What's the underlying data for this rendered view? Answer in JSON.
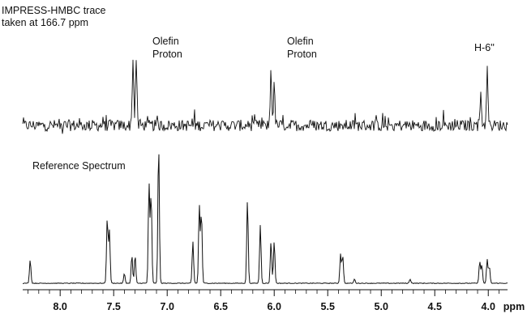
{
  "chart_data": [
    {
      "type": "line",
      "title": "IMPRESS-HMBC trace taken at 166.7 ppm",
      "title_lines": [
        "IMPRESS-HMBC trace",
        "taken  at 166.7 ppm"
      ],
      "x_unit": "ppm",
      "xlim": [
        8.35,
        3.82
      ],
      "x_reversed": true,
      "noise_baseline": true,
      "annotations": [
        {
          "text_lines": [
            "Olefin",
            "Proton"
          ],
          "x": 7.3
        },
        {
          "text_lines": [
            "Olefin",
            "Proton"
          ],
          "x": 6.02
        },
        {
          "text_lines": [
            "H-6''"
          ],
          "x": 4.02
        }
      ],
      "peaks": [
        {
          "x": 7.32,
          "height": 1.0
        },
        {
          "x": 7.29,
          "height": 1.0
        },
        {
          "x": 6.03,
          "height": 0.85
        },
        {
          "x": 6.0,
          "height": 0.6
        },
        {
          "x": 4.07,
          "height": 0.5
        },
        {
          "x": 4.01,
          "height": 0.85
        }
      ]
    },
    {
      "type": "line",
      "title": "Reference Spectrum",
      "x_unit": "ppm",
      "xlim": [
        8.35,
        3.82
      ],
      "x_reversed": true,
      "peaks": [
        {
          "x": 8.28,
          "height": 0.17
        },
        {
          "x": 7.56,
          "height": 0.47
        },
        {
          "x": 7.54,
          "height": 0.38
        },
        {
          "x": 7.4,
          "height": 0.07
        },
        {
          "x": 7.33,
          "height": 0.2
        },
        {
          "x": 7.3,
          "height": 0.2
        },
        {
          "x": 7.17,
          "height": 0.72
        },
        {
          "x": 7.15,
          "height": 0.64
        },
        {
          "x": 7.08,
          "height": 1.0
        },
        {
          "x": 6.76,
          "height": 0.3
        },
        {
          "x": 6.7,
          "height": 0.56
        },
        {
          "x": 6.68,
          "height": 0.51
        },
        {
          "x": 6.25,
          "height": 0.6
        },
        {
          "x": 6.13,
          "height": 0.42
        },
        {
          "x": 6.03,
          "height": 0.3
        },
        {
          "x": 6.0,
          "height": 0.3
        },
        {
          "x": 5.38,
          "height": 0.21
        },
        {
          "x": 5.36,
          "height": 0.2
        },
        {
          "x": 5.25,
          "height": 0.03
        },
        {
          "x": 4.73,
          "height": 0.03
        },
        {
          "x": 4.08,
          "height": 0.16
        },
        {
          "x": 4.06,
          "height": 0.13
        },
        {
          "x": 4.01,
          "height": 0.17
        },
        {
          "x": 3.99,
          "height": 0.12
        }
      ]
    }
  ],
  "x_axis": {
    "unit_label": "ppm",
    "ticks": [
      8.0,
      7.5,
      7.0,
      6.5,
      6.0,
      5.5,
      5.0,
      4.5,
      4.0
    ],
    "tick_labels": [
      "8.0",
      "7.5",
      "7.0",
      "6.5",
      "6.0",
      "5.5",
      "5.0",
      "4.5",
      "4.0"
    ]
  }
}
